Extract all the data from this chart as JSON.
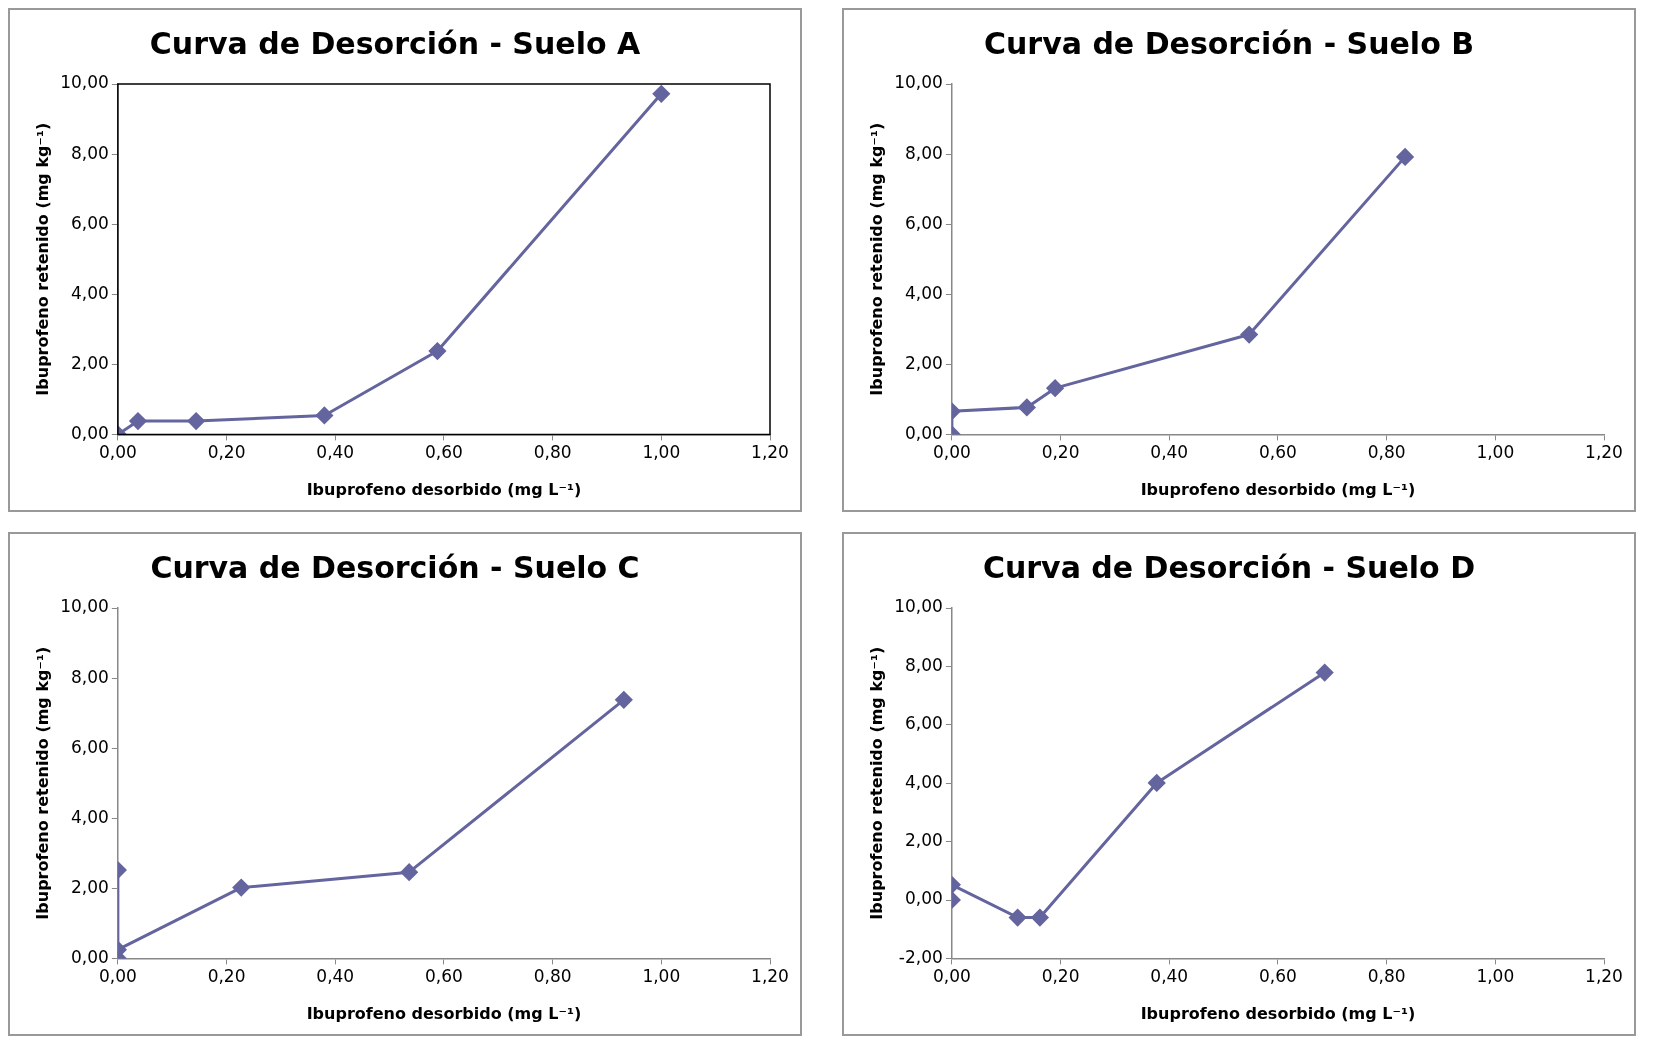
{
  "chart_data": [
    {
      "type": "line",
      "title": "Curva de Desorción - Suelo A",
      "xlabel": "Ibuprofeno desorbido (mg L⁻¹)",
      "ylabel": "Ibuprofeno retenido (mg kg⁻¹)",
      "marker": "diamond",
      "line_style": "solid",
      "grid": false,
      "legend": false,
      "series": [
        {
          "color": "#64649e",
          "x": [
            0,
            0.037,
            0.144,
            0.38,
            0.588,
            1.0
          ],
          "values": [
            0,
            0.38,
            0.38,
            0.54,
            2.38,
            9.72
          ]
        }
      ],
      "xlim": [
        0,
        1.2
      ],
      "xticks": [
        {
          "value": 0,
          "label": "0,00"
        },
        {
          "value": 0.2,
          "label": "0,20"
        },
        {
          "value": 0.4,
          "label": "0,40"
        },
        {
          "value": 0.6,
          "label": "0,60"
        },
        {
          "value": 0.8,
          "label": "0,80"
        },
        {
          "value": 1,
          "label": "1,00"
        },
        {
          "value": 1.2,
          "label": "1,20"
        }
      ],
      "ylim": [
        0,
        10
      ],
      "yticks": [
        {
          "value": 0,
          "label": "0,00"
        },
        {
          "value": 2,
          "label": "2,00"
        },
        {
          "value": 4,
          "label": "4,00"
        },
        {
          "value": 6,
          "label": "6,00"
        },
        {
          "value": 8,
          "label": "8,00"
        },
        {
          "value": 10,
          "label": "10,00"
        }
      ]
    },
    {
      "type": "line",
      "title": "Curva de Desorción - Suelo B",
      "xlabel": "Ibuprofeno desorbido (mg L⁻¹)",
      "ylabel": "Ibuprofeno retenido (mg kg⁻¹)",
      "marker": "diamond",
      "line_style": "solid",
      "grid": false,
      "legend": false,
      "series": [
        {
          "color": "#64649e",
          "x": [
            0,
            0,
            0.138,
            0.19,
            0.547,
            0.834
          ],
          "values": [
            0,
            0.66,
            0.77,
            1.32,
            2.85,
            7.92
          ]
        }
      ],
      "xlim": [
        0,
        1.2
      ],
      "xticks": [
        {
          "value": 0,
          "label": "0,00"
        },
        {
          "value": 0.2,
          "label": "0,20"
        },
        {
          "value": 0.4,
          "label": "0,40"
        },
        {
          "value": 0.6,
          "label": "0,60"
        },
        {
          "value": 0.8,
          "label": "0,80"
        },
        {
          "value": 1,
          "label": "1,00"
        },
        {
          "value": 1.2,
          "label": "1,20"
        }
      ],
      "ylim": [
        0,
        10
      ],
      "yticks": [
        {
          "value": 0,
          "label": "0,00"
        },
        {
          "value": 2,
          "label": "2,00"
        },
        {
          "value": 4,
          "label": "4,00"
        },
        {
          "value": 6,
          "label": "6,00"
        },
        {
          "value": 8,
          "label": "8,00"
        },
        {
          "value": 10,
          "label": "10,00"
        }
      ]
    },
    {
      "type": "line",
      "title": "Curva de Desorción - Suelo C",
      "xlabel": "Ibuprofeno desorbido (mg L⁻¹)",
      "ylabel": "Ibuprofeno retenido (mg kg⁻¹)",
      "marker": "diamond",
      "line_style": "solid",
      "grid": false,
      "legend": false,
      "series": [
        {
          "color": "#64649e",
          "x": [
            0,
            0,
            0,
            0.227,
            0.536,
            0.931
          ],
          "values": [
            0,
            2.52,
            0.25,
            2.02,
            2.46,
            7.38
          ]
        }
      ],
      "xlim": [
        0,
        1.2
      ],
      "xticks": [
        {
          "value": 0,
          "label": "0,00"
        },
        {
          "value": 0.2,
          "label": "0,20"
        },
        {
          "value": 0.4,
          "label": "0,40"
        },
        {
          "value": 0.6,
          "label": "0,60"
        },
        {
          "value": 0.8,
          "label": "0,80"
        },
        {
          "value": 1,
          "label": "1,00"
        },
        {
          "value": 1.2,
          "label": "1,20"
        }
      ],
      "ylim": [
        0,
        10
      ],
      "yticks": [
        {
          "value": 0,
          "label": "0,00"
        },
        {
          "value": 2,
          "label": "2,00"
        },
        {
          "value": 4,
          "label": "4,00"
        },
        {
          "value": 6,
          "label": "6,00"
        },
        {
          "value": 8,
          "label": "8,00"
        },
        {
          "value": 10,
          "label": "10,00"
        }
      ]
    },
    {
      "type": "line",
      "title": "Curva de Desorción - Suelo D",
      "xlabel": "Ibuprofeno desorbido (mg L⁻¹)",
      "ylabel": "Ibuprofeno retenido (mg kg⁻¹)",
      "marker": "diamond",
      "line_style": "solid",
      "grid": false,
      "legend": false,
      "series": [
        {
          "color": "#64649e",
          "x": [
            0,
            0,
            0.121,
            0.162,
            0.377,
            0.686
          ],
          "values": [
            0,
            0.52,
            -0.6,
            -0.6,
            4.01,
            7.79
          ]
        }
      ],
      "xlim": [
        0,
        1.2
      ],
      "xticks": [
        {
          "value": 0,
          "label": "0,00"
        },
        {
          "value": 0.2,
          "label": "0,20"
        },
        {
          "value": 0.4,
          "label": "0,40"
        },
        {
          "value": 0.6,
          "label": "0,60"
        },
        {
          "value": 0.8,
          "label": "0,80"
        },
        {
          "value": 1,
          "label": "1,00"
        },
        {
          "value": 1.2,
          "label": "1,20"
        }
      ],
      "ylim": [
        -2,
        10
      ],
      "yticks": [
        {
          "value": -2,
          "label": "-2,00"
        },
        {
          "value": 0,
          "label": "0,00"
        },
        {
          "value": 2,
          "label": "2,00"
        },
        {
          "value": 4,
          "label": "4,00"
        },
        {
          "value": 6,
          "label": "6,00"
        },
        {
          "value": 8,
          "label": "8,00"
        },
        {
          "value": 10,
          "label": "10,00"
        }
      ]
    }
  ]
}
